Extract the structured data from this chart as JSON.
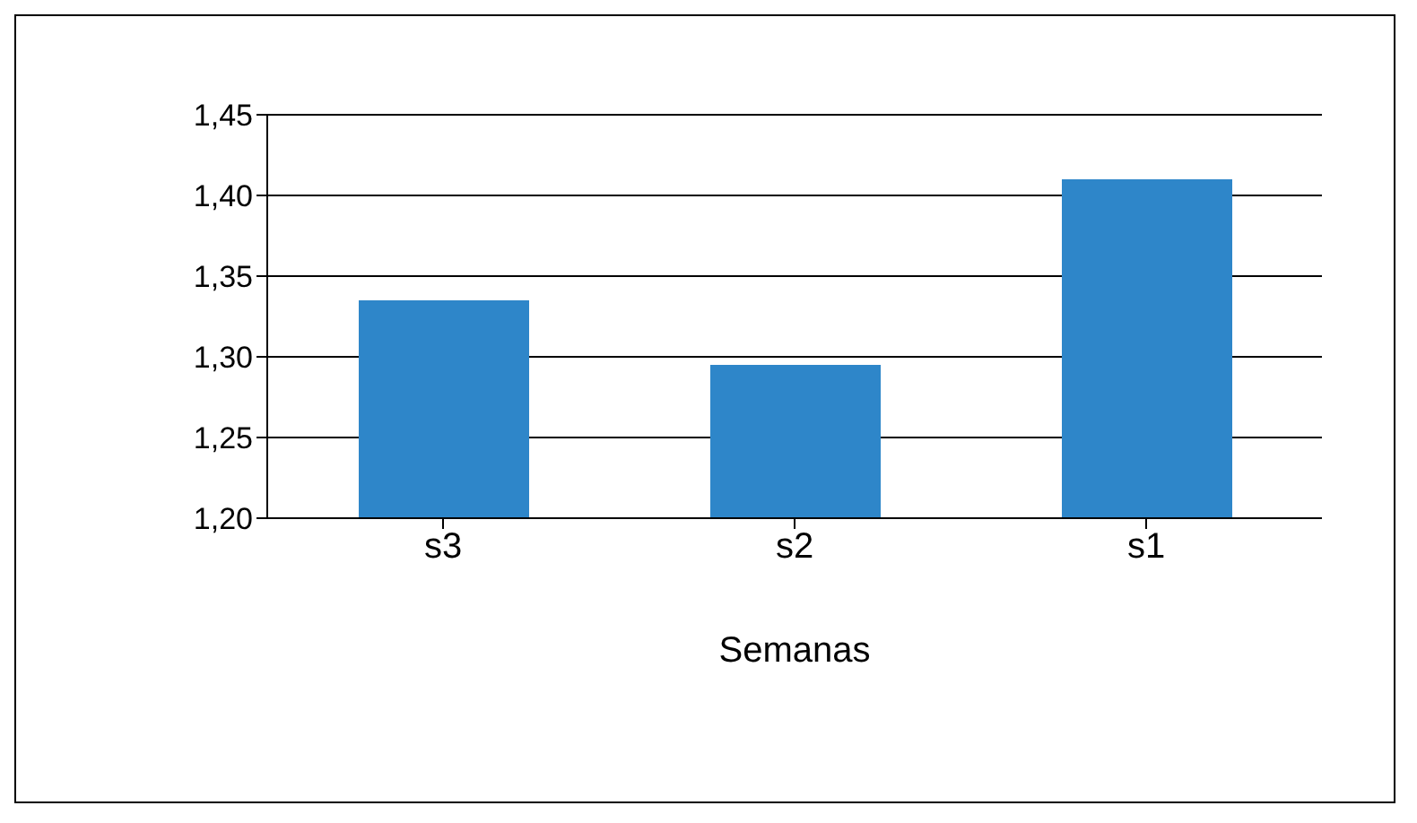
{
  "chart_data": {
    "type": "bar",
    "xlabel": "Semanas",
    "categories": [
      "s3",
      "s2",
      "s1"
    ],
    "values": [
      1.335,
      1.295,
      1.41
    ],
    "color": "#2e86c9",
    "ylim": [
      1.2,
      1.45
    ],
    "yticks": [
      {
        "value": 1.2,
        "label": "1,20"
      },
      {
        "value": 1.25,
        "label": "1,25"
      },
      {
        "value": 1.3,
        "label": "1,30"
      },
      {
        "value": 1.35,
        "label": "1,35"
      },
      {
        "value": 1.4,
        "label": "1,40"
      },
      {
        "value": 1.45,
        "label": "1,45"
      }
    ],
    "grid": "y"
  }
}
